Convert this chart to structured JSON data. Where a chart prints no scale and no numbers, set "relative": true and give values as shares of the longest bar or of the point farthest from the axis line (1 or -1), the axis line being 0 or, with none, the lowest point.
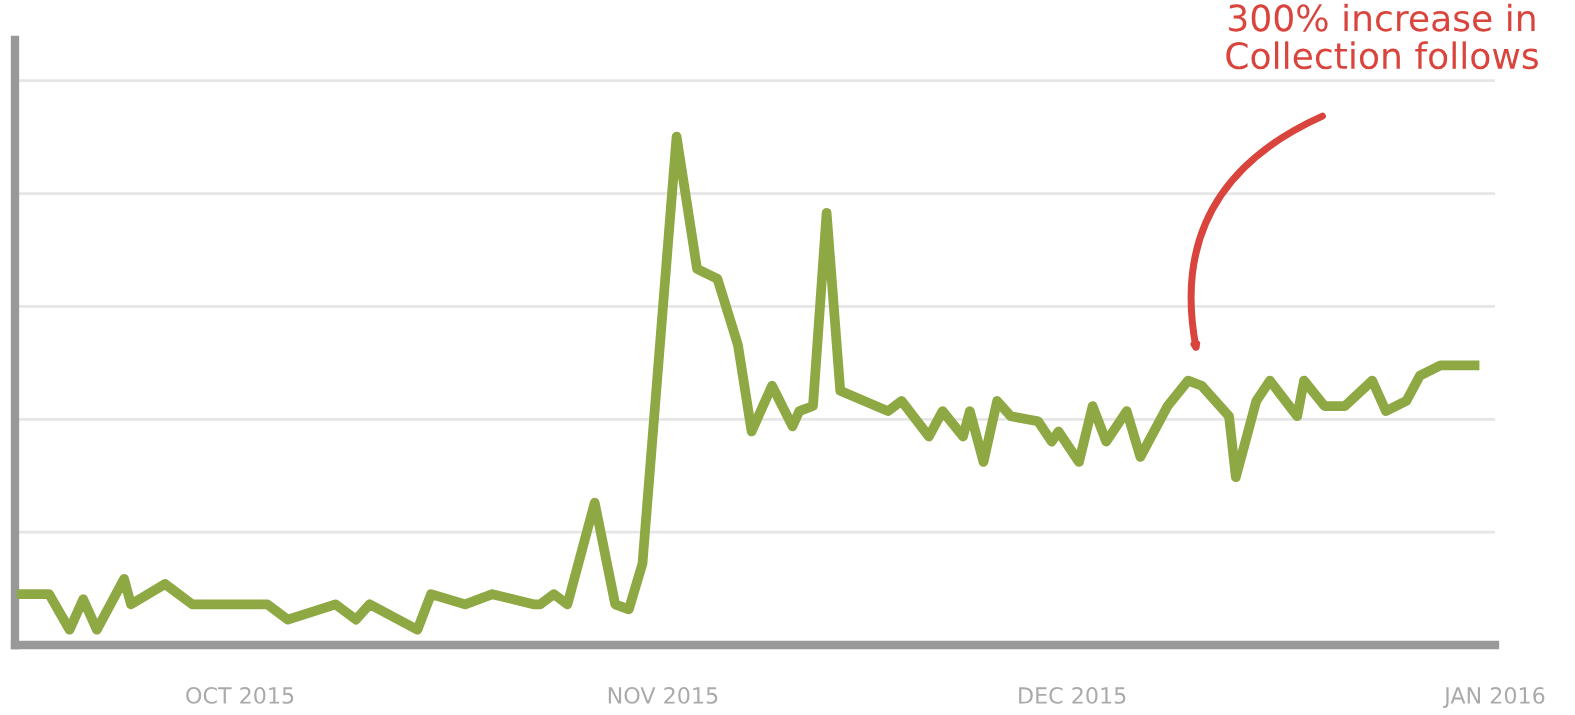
{
  "chart_data": {
    "type": "line",
    "relative": true,
    "grid": "y",
    "marker": "none",
    "line_style": "solid",
    "xlim": [
      "2015-09-14T12:00",
      "2016-01-01"
    ],
    "xticks": [
      {
        "value": "2015-10-01",
        "label": "OCT 2015"
      },
      {
        "value": "2015-11-01",
        "label": "NOV 2015"
      },
      {
        "value": "2015-12-01",
        "label": "DEC 2015"
      },
      {
        "value": "2016-01-01",
        "label": "JAN 2016"
      }
    ],
    "x": [
      "2015-09-15T00:00",
      "2015-09-17T00:00",
      "2015-09-18T12:00",
      "2015-09-19T12:00",
      "2015-09-20T12:00",
      "2015-09-22T12:00",
      "2015-09-23T00:00",
      "2015-09-25T12:00",
      "2015-09-27T12:00",
      "2015-10-03T00:00",
      "2015-10-04T12:00",
      "2015-10-08T00:00",
      "2015-10-09T12:00",
      "2015-10-10T12:00",
      "2015-10-14T00:00",
      "2015-10-15T00:00",
      "2015-10-17T12:00",
      "2015-10-19T12:00",
      "2015-10-22T12:00",
      "2015-10-23T00:00",
      "2015-10-24T00:00",
      "2015-10-25T00:00",
      "2015-10-27T00:00",
      "2015-10-28T12:00",
      "2015-10-29T12:00",
      "2015-10-30T12:00",
      "2015-11-02T00:00",
      "2015-11-03T12:00",
      "2015-11-05T00:00",
      "2015-11-06T12:00",
      "2015-11-07T12:00",
      "2015-11-09T00:00",
      "2015-11-10T12:00",
      "2015-11-11T00:00",
      "2015-11-12T00:00",
      "2015-11-13T00:00",
      "2015-11-14T00:00",
      "2015-11-17T12:00",
      "2015-11-18T12:00",
      "2015-11-20T12:00",
      "2015-11-21T12:00",
      "2015-11-23T00:00",
      "2015-11-23T12:00",
      "2015-11-24T12:00",
      "2015-11-25T12:00",
      "2015-11-26T12:00",
      "2015-11-28T12:00",
      "2015-11-29T12:00",
      "2015-11-30T00:00",
      "2015-12-01T12:00",
      "2015-12-02T12:00",
      "2015-12-03T12:00",
      "2015-12-05T00:00",
      "2015-12-06T00:00",
      "2015-12-08T00:00",
      "2015-12-09T12:00",
      "2015-12-10T12:00",
      "2015-12-12T12:00",
      "2015-12-13T00:00",
      "2015-12-14T12:00",
      "2015-12-15T12:00",
      "2015-12-17T12:00",
      "2015-12-18T00:00",
      "2015-12-19T12:00",
      "2015-12-21T00:00",
      "2015-12-23T00:00",
      "2015-12-24T00:00",
      "2015-12-25T12:00",
      "2015-12-26T12:00",
      "2015-12-28T00:00",
      "2015-12-30T12:00"
    ],
    "series": [
      {
        "color": "#8ea843",
        "values": [
          0.1,
          0.1,
          0.03,
          0.09,
          0.03,
          0.13,
          0.08,
          0.12,
          0.08,
          0.08,
          0.05,
          0.08,
          0.05,
          0.08,
          0.03,
          0.1,
          0.08,
          0.1,
          0.08,
          0.08,
          0.1,
          0.08,
          0.28,
          0.08,
          0.07,
          0.16,
          1,
          0.74,
          0.72,
          0.59,
          0.42,
          0.51,
          0.43,
          0.46,
          0.47,
          0.85,
          0.5,
          0.46,
          0.48,
          0.41,
          0.46,
          0.41,
          0.46,
          0.36,
          0.48,
          0.45,
          0.44,
          0.4,
          0.42,
          0.36,
          0.47,
          0.4,
          0.46,
          0.37,
          0.47,
          0.52,
          0.51,
          0.45,
          0.33,
          0.48,
          0.52,
          0.45,
          0.52,
          0.47,
          0.47,
          0.52,
          0.46,
          0.48,
          0.53,
          0.55,
          0.55
        ]
      }
    ],
    "annotations": [
      "300% increase in\nCollection follows"
    ]
  }
}
